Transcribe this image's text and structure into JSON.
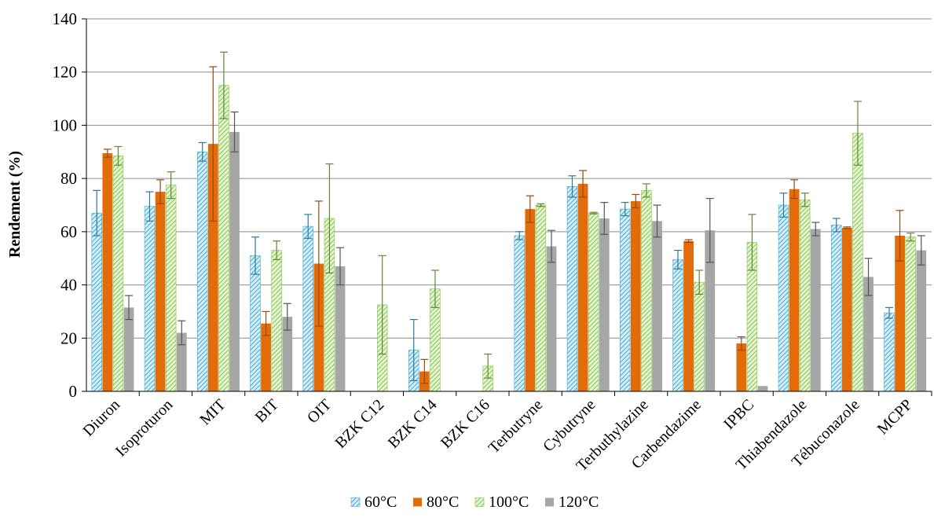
{
  "chart_data": {
    "type": "bar",
    "ylabel": "Rendement (%)",
    "xlabel": "",
    "ylim": [
      0,
      140
    ],
    "yticks": [
      0,
      20,
      40,
      60,
      80,
      100,
      120,
      140
    ],
    "grid": true,
    "legend_position": "bottom",
    "categories": [
      "Diuron",
      "Isoproturon",
      "MIT",
      "BIT",
      "OIT",
      "BZK C12",
      "BZK C14",
      "BZK C16",
      "Terbutryne",
      "Cybutryne",
      "Terbuthylazine",
      "Carbendazime",
      "IPBC",
      "Thiabendazole",
      "Tébuconazole",
      "MCPP"
    ],
    "series": [
      {
        "name": "60°C",
        "color": "#5bb8d6",
        "pattern": "hatch",
        "values": [
          67,
          69.5,
          90,
          51,
          62,
          0,
          15.5,
          0,
          58.5,
          77,
          68.5,
          49.5,
          0,
          70,
          62.5,
          29.5
        ],
        "errors": [
          8.5,
          5.5,
          3.5,
          7,
          4.5,
          0,
          11.5,
          0,
          1.5,
          4,
          2.5,
          3.5,
          0,
          4.5,
          2.5,
          2
        ]
      },
      {
        "name": "80°C",
        "color": "#e36c0a",
        "pattern": "solid",
        "values": [
          89.5,
          75,
          93,
          25.5,
          48,
          0,
          7.5,
          0,
          68.5,
          78,
          71.5,
          56.5,
          18,
          76,
          61.5,
          58.5
        ],
        "errors": [
          1.5,
          4.5,
          29,
          4.5,
          23.5,
          0,
          4.5,
          0,
          5,
          5,
          2.5,
          0.5,
          2.5,
          3.5,
          0.3,
          9.5
        ]
      },
      {
        "name": "100°C",
        "color": "#92d050",
        "pattern": "hatch",
        "values": [
          88.5,
          77.5,
          115,
          53,
          65,
          32.5,
          38.5,
          9.5,
          70,
          67,
          75.5,
          41,
          56,
          72,
          97,
          58
        ],
        "errors": [
          3.5,
          5,
          12.5,
          3.5,
          20.5,
          18.5,
          7,
          4.5,
          0.5,
          0.3,
          2.5,
          4.5,
          10.5,
          2.5,
          12,
          1.5
        ]
      },
      {
        "name": "120°C",
        "color": "#a6a6a6",
        "pattern": "solid",
        "values": [
          31.5,
          22,
          97.5,
          28,
          47,
          0,
          0,
          0,
          54.5,
          65,
          64,
          60.5,
          2,
          61,
          43,
          53
        ],
        "errors": [
          4.5,
          4.5,
          7.5,
          5,
          7,
          0,
          0,
          0,
          6,
          6,
          6,
          12,
          0,
          2.5,
          7,
          5.5
        ]
      }
    ]
  }
}
